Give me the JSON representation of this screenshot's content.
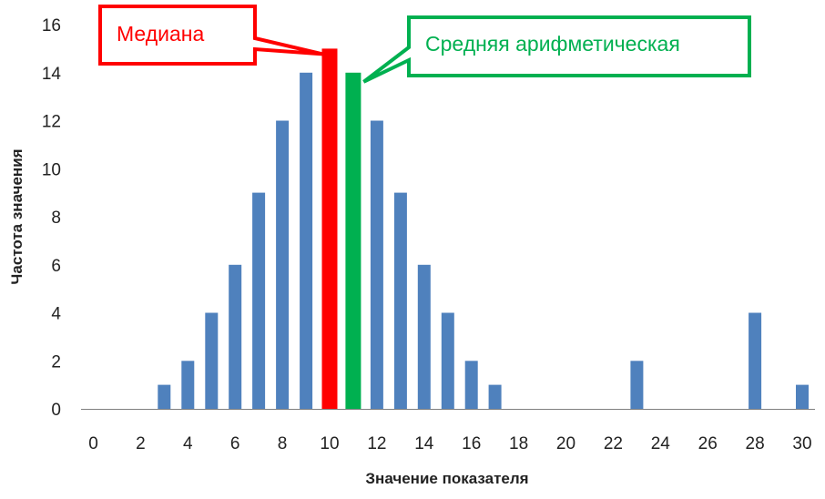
{
  "chart_data": {
    "type": "bar",
    "xlabel": "Значение показателя",
    "ylabel": "Частота значения",
    "xlim": [
      0,
      30
    ],
    "ylim": [
      0,
      16
    ],
    "x_ticks": [
      0,
      2,
      4,
      6,
      8,
      10,
      12,
      14,
      16,
      18,
      20,
      22,
      24,
      26,
      28,
      30
    ],
    "y_ticks": [
      0,
      2,
      4,
      6,
      8,
      10,
      12,
      14,
      16
    ],
    "grid": false,
    "legend": "none",
    "series": [
      {
        "color": "#4f81bd",
        "points": [
          {
            "x": 3,
            "y": 1
          },
          {
            "x": 4,
            "y": 2
          },
          {
            "x": 5,
            "y": 4
          },
          {
            "x": 6,
            "y": 6
          },
          {
            "x": 7,
            "y": 9
          },
          {
            "x": 8,
            "y": 12
          },
          {
            "x": 9,
            "y": 14
          },
          {
            "x": 12,
            "y": 12
          },
          {
            "x": 13,
            "y": 9
          },
          {
            "x": 14,
            "y": 6
          },
          {
            "x": 15,
            "y": 4
          },
          {
            "x": 16,
            "y": 2
          },
          {
            "x": 17,
            "y": 1
          },
          {
            "x": 23,
            "y": 2
          },
          {
            "x": 28,
            "y": 4
          },
          {
            "x": 30,
            "y": 1
          }
        ]
      }
    ],
    "highlights": [
      {
        "label": "Медиана",
        "x": 10,
        "y": 15,
        "color": "#ff0000"
      },
      {
        "label": "Средняя арифметическая",
        "x": 11,
        "y": 14,
        "color": "#00b050"
      }
    ]
  }
}
